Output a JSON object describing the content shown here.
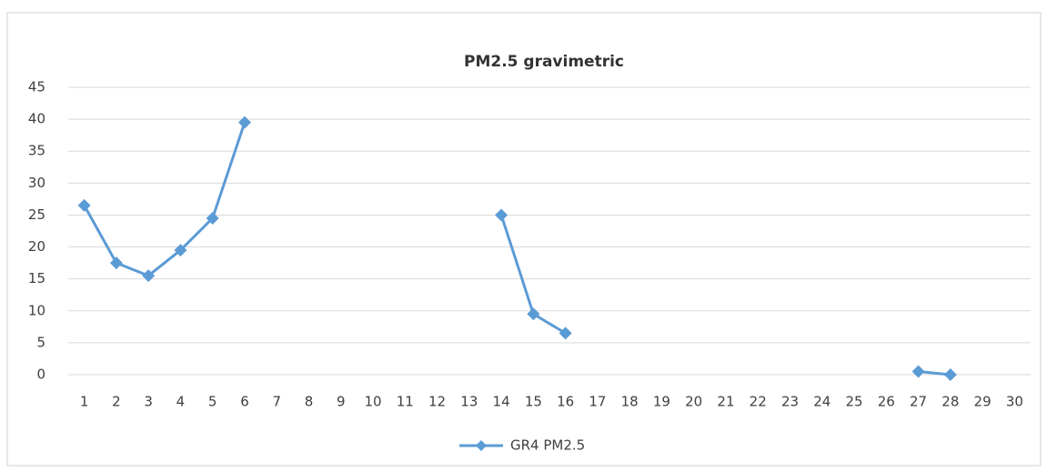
{
  "chart_data": {
    "type": "line",
    "title": "PM2.5 gravimetric",
    "categories": [
      "1",
      "2",
      "3",
      "4",
      "5",
      "6",
      "7",
      "8",
      "9",
      "10",
      "11",
      "12",
      "13",
      "14",
      "15",
      "16",
      "17",
      "18",
      "19",
      "20",
      "21",
      "22",
      "23",
      "24",
      "25",
      "26",
      "27",
      "28",
      "29",
      "30"
    ],
    "series": [
      {
        "name": "GR4 PM2.5",
        "color": "#5b9bd5",
        "values": [
          26.5,
          17.5,
          15.5,
          19.5,
          24.5,
          39.5,
          null,
          null,
          null,
          null,
          null,
          null,
          null,
          25,
          9.5,
          6.5,
          null,
          null,
          null,
          null,
          null,
          null,
          null,
          null,
          null,
          null,
          0.5,
          0,
          null,
          null
        ]
      }
    ],
    "ylim": [
      0,
      45
    ],
    "yticks": [
      0,
      5,
      10,
      15,
      20,
      25,
      30,
      35,
      40,
      45
    ],
    "grid": true,
    "legend": "bottom"
  }
}
